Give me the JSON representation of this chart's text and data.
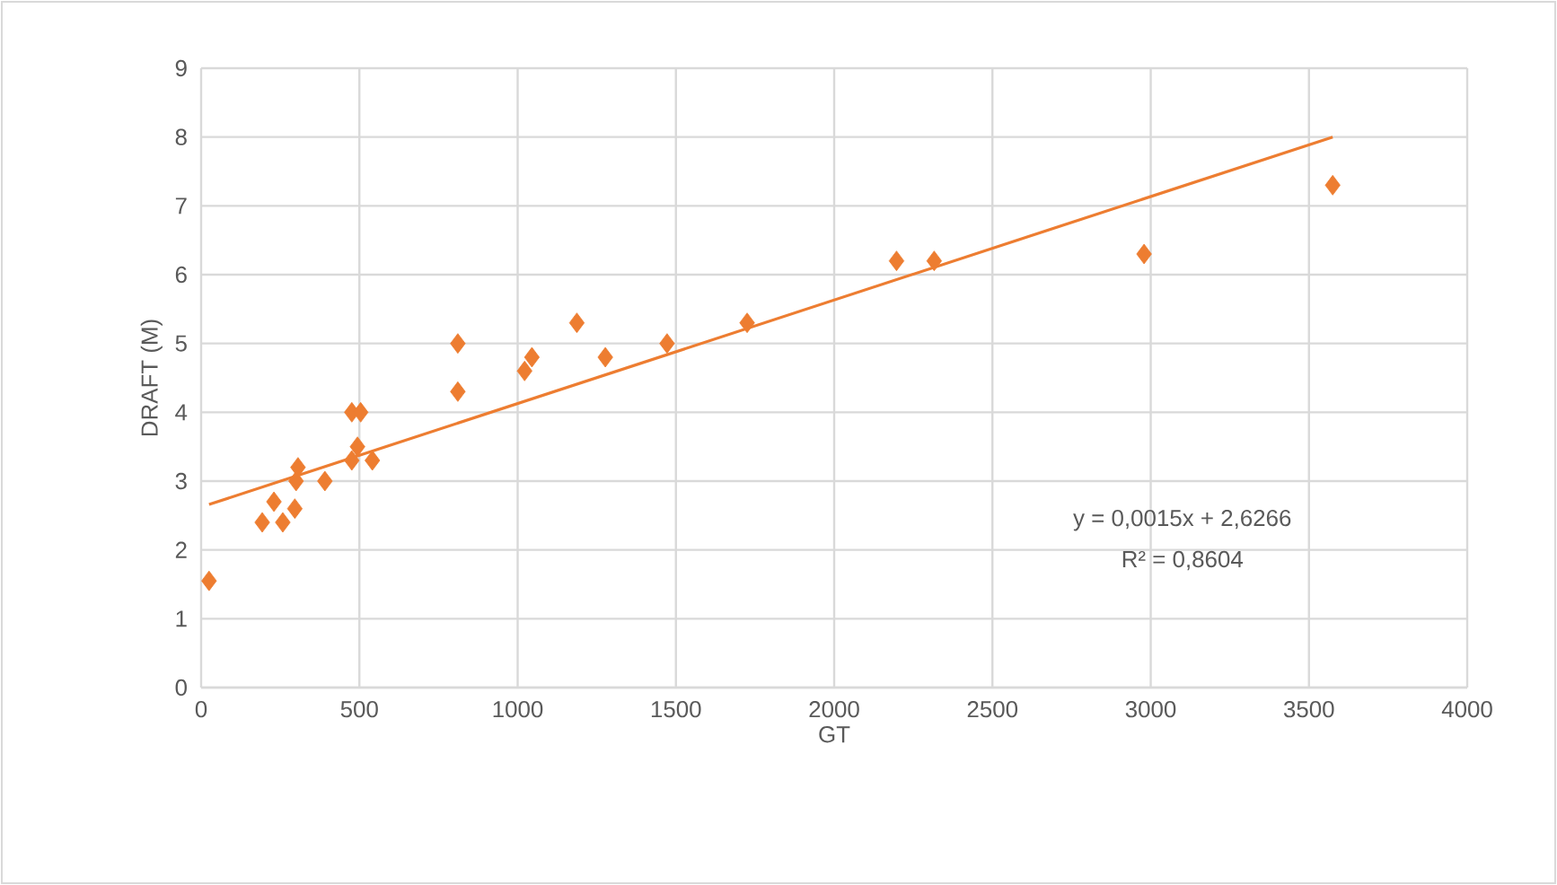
{
  "chart_data": {
    "type": "scatter",
    "xlabel": "GT",
    "ylabel": "DRAFT (M)",
    "xlim": [
      0,
      4000
    ],
    "ylim": [
      0,
      9
    ],
    "xticks": [
      0,
      500,
      1000,
      1500,
      2000,
      2500,
      3000,
      3500,
      4000
    ],
    "yticks": [
      0,
      1,
      2,
      3,
      4,
      5,
      6,
      7,
      8,
      9
    ],
    "grid": true,
    "series": [
      {
        "marker": "diamond",
        "color": "#ed7d31",
        "x": [
          25,
          193,
          258,
          230,
          296,
          306,
          300,
          391,
          476,
          504,
          494,
          476,
          541,
          811,
          811,
          1022,
          1045,
          1187,
          1277,
          1472,
          1725,
          2197,
          2316,
          2979,
          3575
        ],
        "values": [
          1.55,
          2.4,
          2.4,
          2.7,
          2.6,
          3.2,
          3.0,
          3.0,
          4.0,
          4.0,
          3.5,
          3.3,
          3.3,
          4.3,
          5.0,
          4.6,
          4.8,
          5.3,
          4.8,
          5.0,
          5.3,
          6.2,
          6.2,
          6.3,
          7.3
        ]
      },
      {
        "type": "line",
        "marker": "none",
        "color": "#ed7d31",
        "x": [
          25,
          3575
        ],
        "values": [
          2.66,
          8.0
        ]
      }
    ],
    "annotations": [
      "y = 0,0015x + 2,6266",
      "R² = 0,8604"
    ]
  }
}
